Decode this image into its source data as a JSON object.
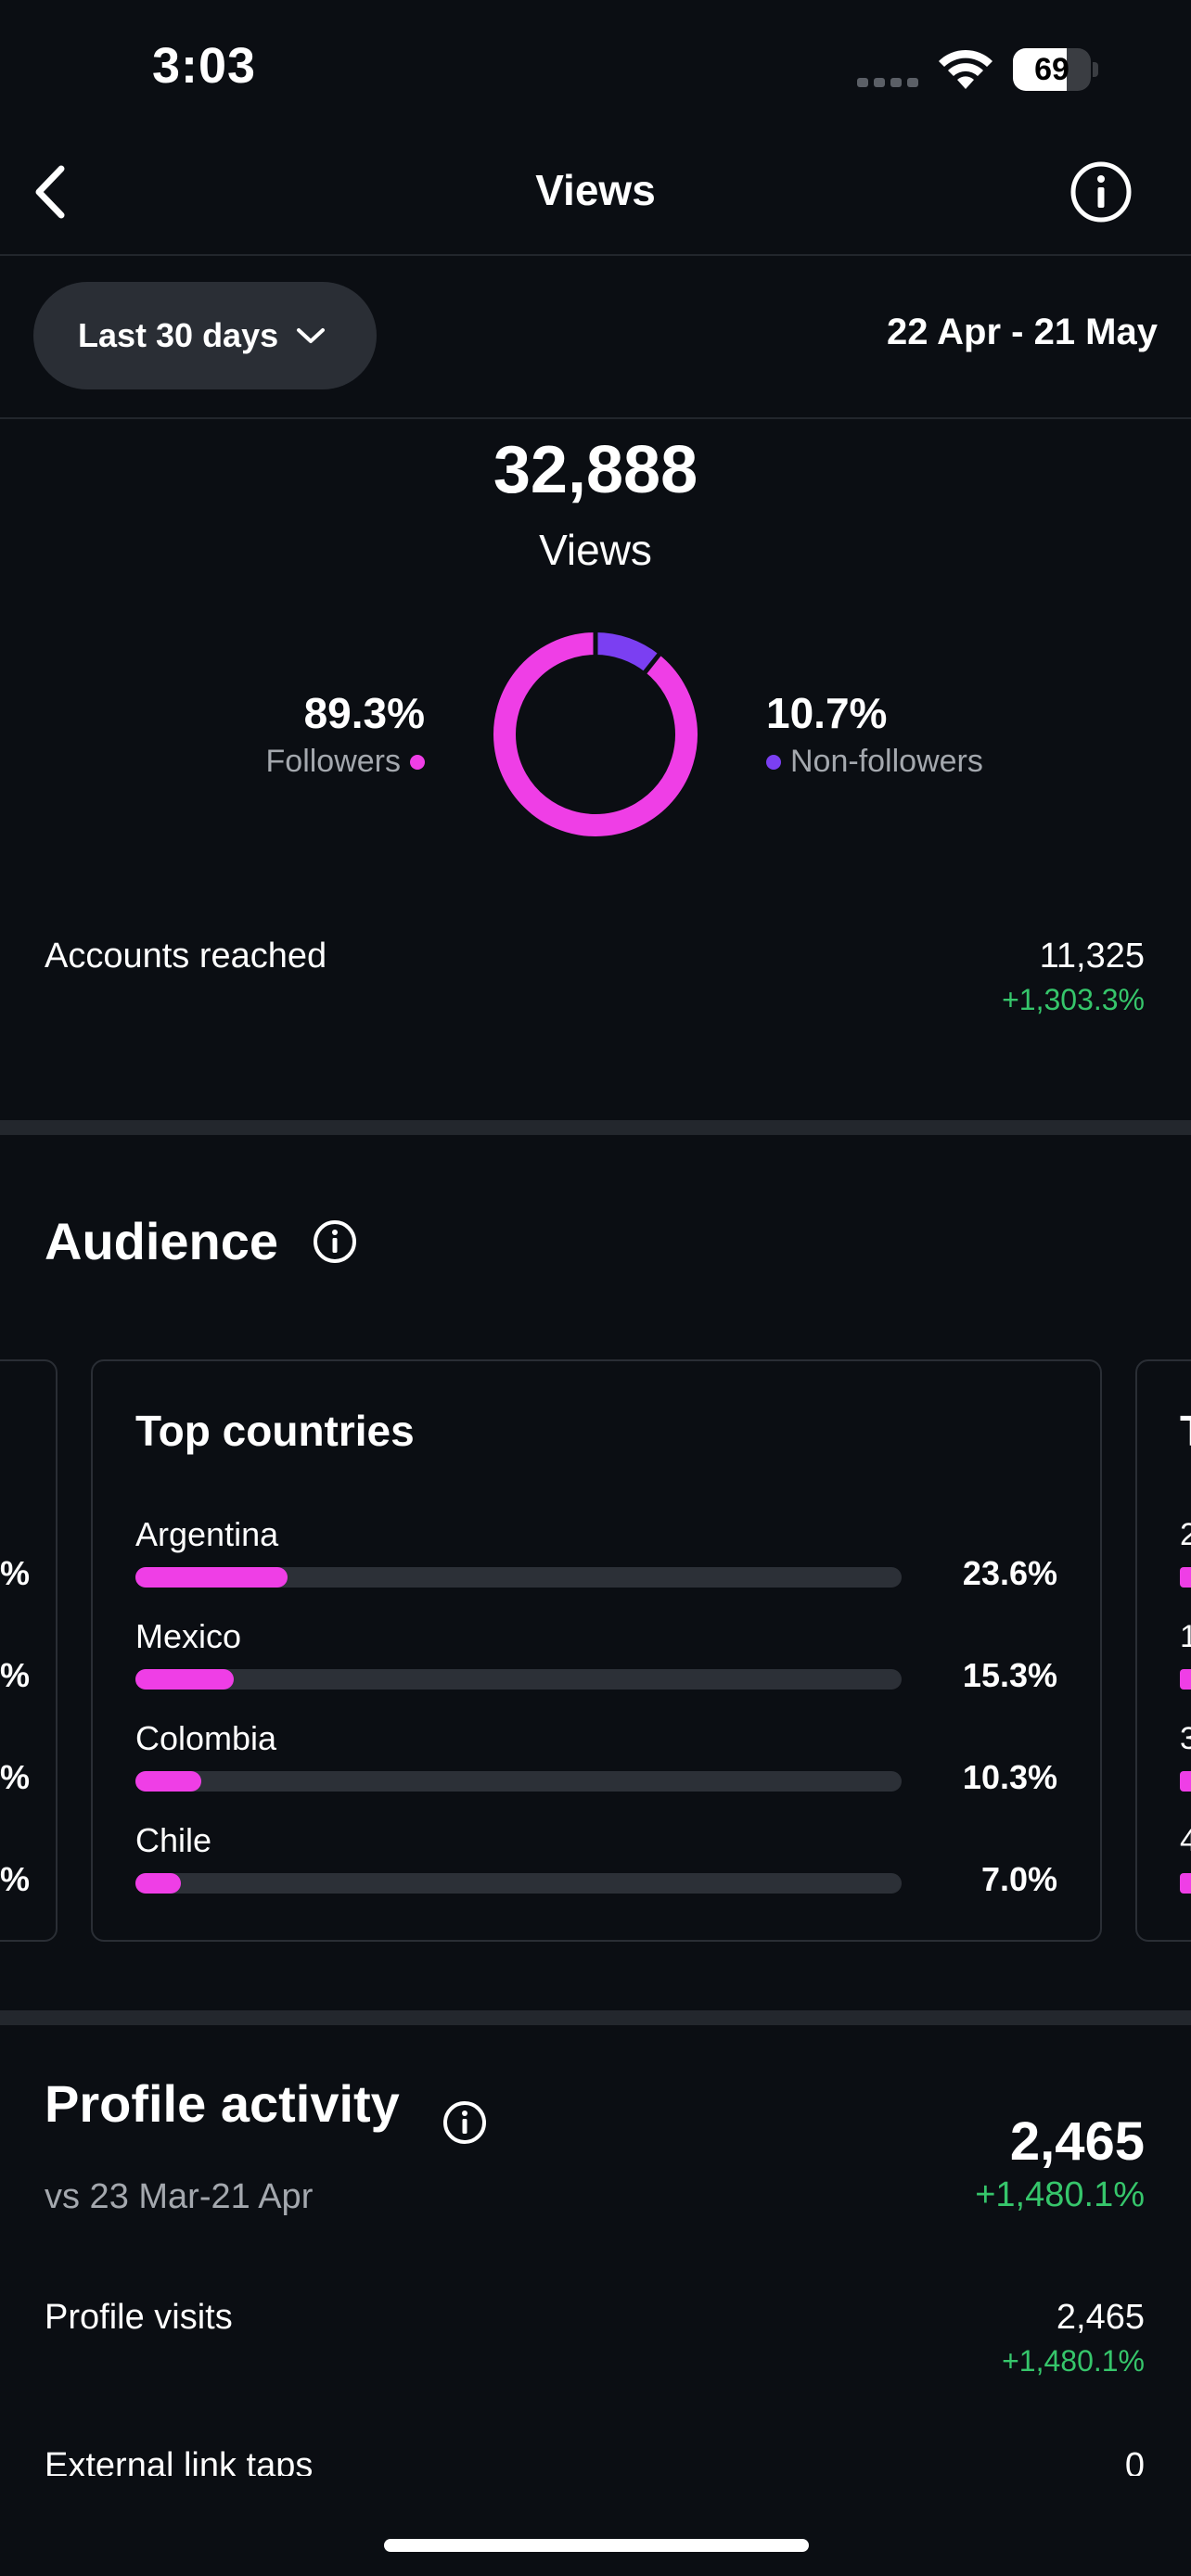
{
  "status_bar": {
    "time": "3:03",
    "battery": "69",
    "battery_level": 0.69
  },
  "header": {
    "title": "Views",
    "back_icon": "chevron-left-icon",
    "info_icon": "info-icon"
  },
  "filter": {
    "range_label": "Last 30 days",
    "date_range": "22 Apr - 21 May"
  },
  "views": {
    "total": "32,888",
    "label": "Views",
    "followers_pct": "89.3%",
    "followers_label": "Followers",
    "non_followers_pct": "10.7%",
    "non_followers_label": "Non-followers",
    "followers_share": 0.893,
    "non_followers_share": 0.107,
    "followers_color": "#ef3ee6",
    "non_followers_color": "#7b3ff2"
  },
  "accounts_reached": {
    "label": "Accounts reached",
    "value": "11,325",
    "change": "+1,303.3%"
  },
  "audience": {
    "title": "Audience",
    "top_countries": {
      "title": "Top countries",
      "items": [
        {
          "name": "Argentina",
          "pct": "23.6%",
          "share": 0.236
        },
        {
          "name": "Mexico",
          "pct": "15.3%",
          "share": 0.153
        },
        {
          "name": "Colombia",
          "pct": "10.3%",
          "share": 0.103
        },
        {
          "name": "Chile",
          "pct": "7.0%",
          "share": 0.07
        }
      ]
    },
    "prev_card_pct_glyphs": [
      "%",
      "%",
      "%",
      "%"
    ],
    "next_card": {
      "title_glyph": "T",
      "digits": [
        "2",
        "1",
        "3",
        "4"
      ]
    }
  },
  "profile_activity": {
    "title": "Profile activity",
    "comparison": "vs 23 Mar-21 Apr",
    "total": "2,465",
    "change": "+1,480.1%",
    "visits_label": "Profile visits",
    "visits_value": "2,465",
    "visits_change": "+1,480.1%",
    "link_label": "External link taps",
    "link_value": "0"
  }
}
